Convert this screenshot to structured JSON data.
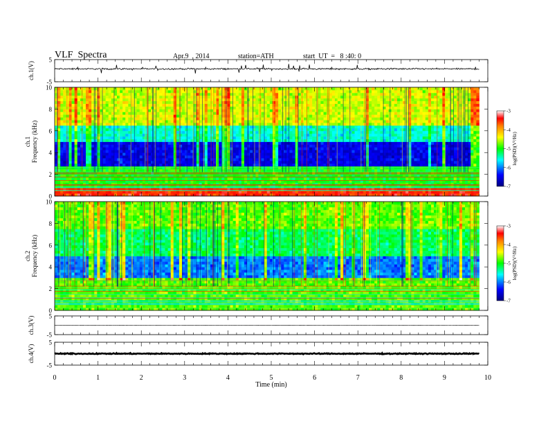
{
  "header": {
    "title": "VLF  Spectra",
    "date": "Apr.9  , 2014",
    "station": "station=ATH",
    "start": "start  UT  =   8 :40: 0"
  },
  "chart_data": [
    {
      "type": "line",
      "panel": "ch1-waveform",
      "ylabel": "ch.1(V)",
      "ylim": [
        -5,
        5
      ],
      "yticks": [
        "5",
        "-5"
      ],
      "xlim": [
        0,
        10
      ],
      "series": [
        {
          "values_summary": {
            "mean": 0.8,
            "noise_amplitude": 0.5,
            "spike_amplitude": 2.0,
            "end_min": 9.8
          }
        }
      ]
    },
    {
      "type": "heatmap",
      "panel": "ch1-spectrogram",
      "ylabel": "ch.1\nFrequency (kHz)",
      "ylabel_lines": [
        "ch.1",
        "Frequency (kHz)"
      ],
      "ylim": [
        0,
        10
      ],
      "yticks": [
        "0",
        "2",
        "4",
        "6",
        "8",
        "10"
      ],
      "xlim": [
        0,
        10
      ],
      "data_end_min": 9.8,
      "colorbar": {
        "label": "log(PSD)(V²/Hz)",
        "range": [
          -7,
          -3
        ],
        "ticks": [
          "-3",
          "-4",
          "-5",
          "-6",
          "-7"
        ]
      },
      "bands_logpsd": [
        {
          "f_range_khz": [
            0,
            0.8
          ],
          "level": -3.5
        },
        {
          "f_range_khz": [
            0.8,
            2.7
          ],
          "level": -5.0
        },
        {
          "f_range_khz": [
            2.7,
            5.0
          ],
          "level": -6.5
        },
        {
          "f_range_khz": [
            5.0,
            6.5
          ],
          "level": -5.5
        },
        {
          "f_range_khz": [
            6.5,
            10
          ],
          "level": -4.5
        }
      ]
    },
    {
      "type": "heatmap",
      "panel": "ch2-spectrogram",
      "ylabel": "ch.2\nFrequency (kHz)",
      "ylabel_lines": [
        "ch.2",
        "Frequency (kHz)"
      ],
      "ylim": [
        0,
        10
      ],
      "yticks": [
        "0",
        "2",
        "4",
        "6",
        "8",
        "10"
      ],
      "xlim": [
        0,
        10
      ],
      "data_end_min": 9.8,
      "colorbar": {
        "label": "log(PSD)(V²/Hz)",
        "range": [
          -7,
          -3
        ],
        "ticks": [
          "-3",
          "-4",
          "-5",
          "-6",
          "-7"
        ]
      },
      "bands_logpsd": [
        {
          "f_range_khz": [
            0,
            3.0
          ],
          "level": -4.8
        },
        {
          "f_range_khz": [
            3.0,
            5.0
          ],
          "level": -6.0
        },
        {
          "f_range_khz": [
            5.0,
            7.5
          ],
          "level": -5.2
        },
        {
          "f_range_khz": [
            7.5,
            10
          ],
          "level": -4.8
        }
      ]
    },
    {
      "type": "line",
      "panel": "ch3-waveform",
      "ylabel": "ch.3(V)",
      "ylim": [
        -5,
        5
      ],
      "yticks": [
        "5",
        "-5"
      ],
      "xlim": [
        0,
        10
      ],
      "series": [
        {
          "values_summary": {
            "mean": 0.0,
            "noise_amplitude": 0.05,
            "end_min": 9.8
          }
        }
      ]
    },
    {
      "type": "line",
      "panel": "ch4-waveform",
      "ylabel": "ch.4(V)",
      "ylim": [
        -5,
        5
      ],
      "yticks": [
        "5",
        "-5"
      ],
      "xlim": [
        0,
        10
      ],
      "series": [
        {
          "values_summary": {
            "mean": 0.0,
            "noise_amplitude": 0.3,
            "end_min": 9.8
          }
        }
      ]
    }
  ],
  "xaxis": {
    "label": "Time  (min)",
    "ticks": [
      "0",
      "1",
      "2",
      "3",
      "4",
      "5",
      "6",
      "7",
      "8",
      "9",
      "10"
    ]
  }
}
